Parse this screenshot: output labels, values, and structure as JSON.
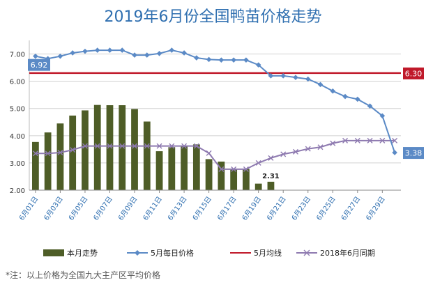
{
  "title": "2019年6月份全国鸭苗价格走势",
  "footnote": "*注：以上价格为全国九大主产区平均价格",
  "colors": {
    "bars": "#4e5d27",
    "daily": "#5b8ac6",
    "avg": "#c0192a",
    "last_year": "#8e7ab0",
    "title": "#2f6fb0"
  },
  "chart_data": {
    "type": "bar",
    "y_ticks": [
      "2.00",
      "3.00",
      "4.00",
      "5.00",
      "6.00",
      "7.00"
    ],
    "ylim": [
      2,
      7.5
    ],
    "x_tick_labels": [
      "6月01日",
      "6月03日",
      "6月05日",
      "6月07日",
      "6月09日",
      "6月11日",
      "6月13日",
      "6月15日",
      "6月17日",
      "6月19日",
      "6月21日",
      "6月23日",
      "6月25日",
      "6月27日",
      "6月29日"
    ],
    "series": [
      {
        "name": "本月走势",
        "kind": "bar",
        "values": [
          3.77,
          4.12,
          4.45,
          4.74,
          4.93,
          5.13,
          5.12,
          5.12,
          4.98,
          4.52,
          3.43,
          3.58,
          3.63,
          3.68,
          3.14,
          3.05,
          2.78,
          2.78,
          2.24,
          2.31
        ]
      },
      {
        "name": "5月每日价格",
        "kind": "line",
        "values": [
          6.92,
          6.83,
          6.92,
          7.04,
          7.1,
          7.14,
          7.14,
          7.14,
          6.96,
          6.96,
          7.02,
          7.14,
          7.04,
          6.86,
          6.8,
          6.78,
          6.78,
          6.78,
          6.6,
          6.2,
          6.2,
          6.14,
          6.08,
          5.88,
          5.64,
          5.44,
          5.34,
          5.09,
          4.73,
          3.38
        ]
      },
      {
        "name": "5月均线",
        "kind": "line",
        "constant": 6.3
      },
      {
        "name": "2018年6月同期",
        "kind": "line",
        "values": [
          3.35,
          3.35,
          3.38,
          3.48,
          3.62,
          3.62,
          3.62,
          3.62,
          3.62,
          3.62,
          3.62,
          3.62,
          3.62,
          3.62,
          3.36,
          2.77,
          2.77,
          2.77,
          3.0,
          3.18,
          3.32,
          3.41,
          3.52,
          3.58,
          3.72,
          3.82,
          3.82,
          3.82,
          3.82,
          3.82
        ]
      }
    ],
    "data_labels": {
      "daily_first": "6.92",
      "daily_last": "3.38",
      "avg": "6.30",
      "bar_last": "2.31"
    },
    "legend": [
      "本月走势",
      "5月每日价格",
      "5月均线",
      "2018年6月同期"
    ]
  }
}
